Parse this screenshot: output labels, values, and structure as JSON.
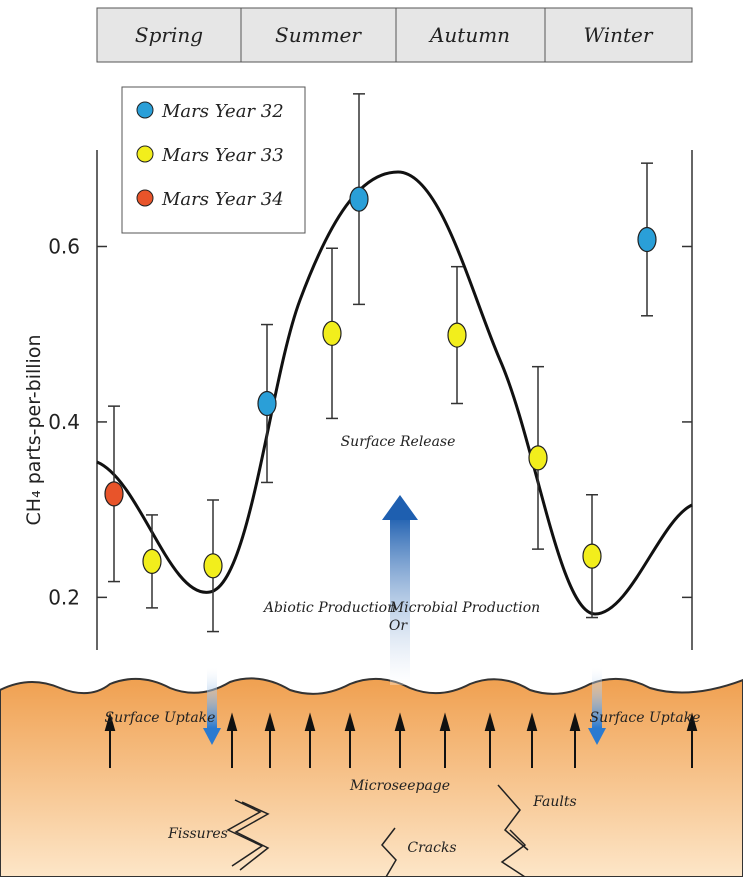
{
  "chart_data": {
    "type": "scatter",
    "seasons": [
      "Spring",
      "Summer",
      "Autumn",
      "Winter"
    ],
    "y_label": "CH₄ parts-per-billion",
    "ylim": [
      0.14,
      0.71
    ],
    "yticks": [
      0.2,
      0.4,
      0.6
    ],
    "series": [
      {
        "name": "Mars Year 32",
        "color": "#2a9fd8",
        "values": [
          0.421,
          0.654,
          0.608
        ],
        "errors": [
          0.09,
          0.12,
          0.087
        ]
      },
      {
        "name": "Mars Year 33",
        "color": "#f2ee1c",
        "values": [
          0.241,
          0.236,
          0.501,
          0.499,
          0.359,
          0.247
        ],
        "errors": [
          0.053,
          0.075,
          0.097,
          0.078,
          0.104,
          0.07
        ]
      },
      {
        "name": "Mars Year 34",
        "color": "#e8542a",
        "values": [
          0.318
        ],
        "errors": [
          0.1
        ]
      }
    ],
    "annotations": {
      "surface_release": "Surface Release",
      "abiotic": "Abiotic Production",
      "or": "Or",
      "microbial": "Microbial Production",
      "uptake_left": "Surface Uptake",
      "uptake_right": "Surface Uptake",
      "microseepage": "Microseepage",
      "faults": "Faults",
      "fissures": "Fissures",
      "cracks": "Cracks"
    }
  }
}
